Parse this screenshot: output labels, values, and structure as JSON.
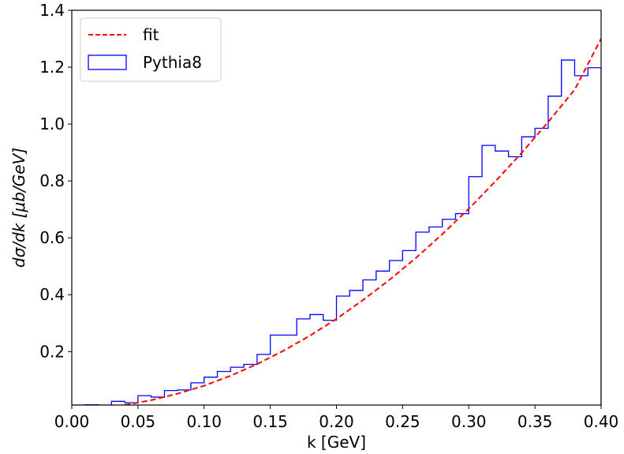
{
  "chart_data": {
    "type": "line",
    "xlabel": "k [GeV]",
    "ylabel": "dσ/dk [μb/GeV]",
    "xlim": [
      0.0,
      0.4
    ],
    "ylim": [
      0.012,
      1.4
    ],
    "xticks": [
      "0.00",
      "0.05",
      "0.10",
      "0.15",
      "0.20",
      "0.25",
      "0.30",
      "0.35",
      "0.40"
    ],
    "yticks": [
      "0.2",
      "0.4",
      "0.6",
      "0.8",
      "1.0",
      "1.2",
      "1.4"
    ],
    "grid": false,
    "legend_position": "top-left",
    "series": [
      {
        "name": "fit",
        "style": "dashed",
        "color": "#ff0000",
        "x": [
          0.04,
          0.06,
          0.08,
          0.1,
          0.12,
          0.14,
          0.16,
          0.18,
          0.2,
          0.22,
          0.24,
          0.26,
          0.28,
          0.3,
          0.32,
          0.34,
          0.36,
          0.38,
          0.4
        ],
        "y": [
          0.012,
          0.029,
          0.052,
          0.08,
          0.115,
          0.156,
          0.203,
          0.256,
          0.315,
          0.381,
          0.452,
          0.529,
          0.613,
          0.702,
          0.798,
          0.899,
          1.007,
          1.121,
          1.3
        ]
      },
      {
        "name": "Pythia8",
        "style": "step",
        "color": "#0000ff",
        "bin_edges": [
          0.0,
          0.01,
          0.02,
          0.03,
          0.04,
          0.05,
          0.06,
          0.07,
          0.08,
          0.09,
          0.1,
          0.11,
          0.12,
          0.13,
          0.14,
          0.15,
          0.16,
          0.17,
          0.18,
          0.19,
          0.2,
          0.21,
          0.22,
          0.23,
          0.24,
          0.25,
          0.26,
          0.27,
          0.28,
          0.29,
          0.3,
          0.31,
          0.32,
          0.33,
          0.34,
          0.35,
          0.36,
          0.37,
          0.38,
          0.39,
          0.4
        ],
        "values": [
          0.0,
          0.013,
          0.0,
          0.025,
          0.02,
          0.045,
          0.04,
          0.063,
          0.065,
          0.09,
          0.11,
          0.13,
          0.145,
          0.155,
          0.19,
          0.258,
          0.258,
          0.315,
          0.33,
          0.31,
          0.395,
          0.415,
          0.452,
          0.483,
          0.52,
          0.555,
          0.62,
          0.638,
          0.665,
          0.685,
          0.815,
          0.925,
          0.905,
          0.885,
          0.955,
          0.985,
          1.098,
          1.225,
          1.17,
          1.198
        ]
      }
    ]
  }
}
